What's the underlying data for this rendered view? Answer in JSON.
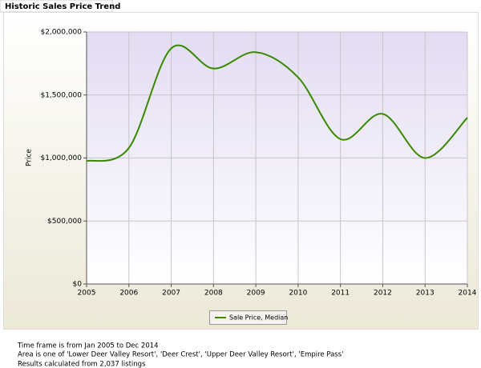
{
  "tab": {
    "title": "Historic Sales Price Trend"
  },
  "chart_data": {
    "type": "line",
    "x": [
      2005,
      2006,
      2007,
      2008,
      2009,
      2010,
      2011,
      2012,
      2013,
      2014
    ],
    "series": [
      {
        "name": "Sale Price, Median",
        "color": "#3a8a00",
        "values": [
          975000,
          1080000,
          1870000,
          1710000,
          1840000,
          1640000,
          1150000,
          1350000,
          1000000,
          1320000
        ]
      }
    ],
    "y_label": "Price",
    "xlim": [
      2005,
      2014
    ],
    "ylim": [
      0,
      2000000
    ],
    "xticks": [
      2005,
      2006,
      2007,
      2008,
      2009,
      2010,
      2011,
      2012,
      2013,
      2014
    ],
    "yticks": [
      {
        "value": 0,
        "label": "$0"
      },
      {
        "value": 500000,
        "label": "$500,000"
      },
      {
        "value": 1000000,
        "label": "$1,000,000"
      },
      {
        "value": 1500000,
        "label": "$1,500,000"
      },
      {
        "value": 2000000,
        "label": "$2,000,000"
      }
    ],
    "grid": true,
    "legend": "bottom"
  },
  "footer": {
    "lines": [
      "Time frame is from Jan 2005 to Dec 2014",
      "Area is one of 'Lower Deer Valley Resort', 'Deer Crest', 'Upper Deer Valley Resort', 'Empire Pass'",
      "Results calculated from 2,037 listings"
    ]
  }
}
